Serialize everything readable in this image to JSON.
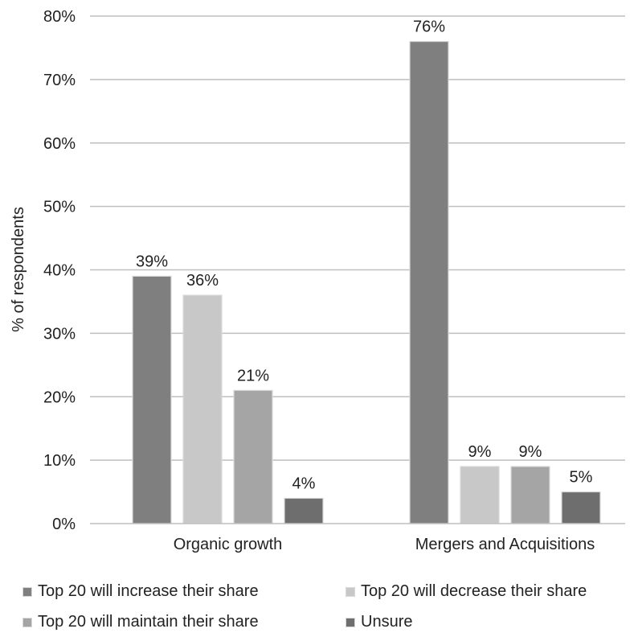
{
  "chart_data": {
    "type": "bar",
    "categories": [
      "Organic growth",
      "Mergers and Acquisitions"
    ],
    "series": [
      {
        "name": "Top 20 will increase their share",
        "values": [
          39,
          76
        ],
        "labels": [
          "39%",
          "76%"
        ],
        "color": "#7f7f7f"
      },
      {
        "name": "Top 20 will decrease their share",
        "values": [
          36,
          9
        ],
        "labels": [
          "36%",
          "9%"
        ],
        "color": "#c8c8c8"
      },
      {
        "name": "Top 20 will maintain their share",
        "values": [
          21,
          9
        ],
        "labels": [
          "21%",
          "9%"
        ],
        "color": "#a5a5a5"
      },
      {
        "name": "Unsure",
        "values": [
          4,
          5
        ],
        "labels": [
          "4%",
          "5%"
        ],
        "color": "#6e6e6e"
      }
    ],
    "ylabel": "% of respondents",
    "xlabel": "",
    "ylim": [
      0,
      80
    ],
    "yticks": [
      0,
      10,
      20,
      30,
      40,
      50,
      60,
      70,
      80
    ],
    "ytick_labels": [
      "0%",
      "10%",
      "20%",
      "30%",
      "40%",
      "50%",
      "60%",
      "70%",
      "80%"
    ],
    "grid": true,
    "legend_position": "bottom"
  }
}
